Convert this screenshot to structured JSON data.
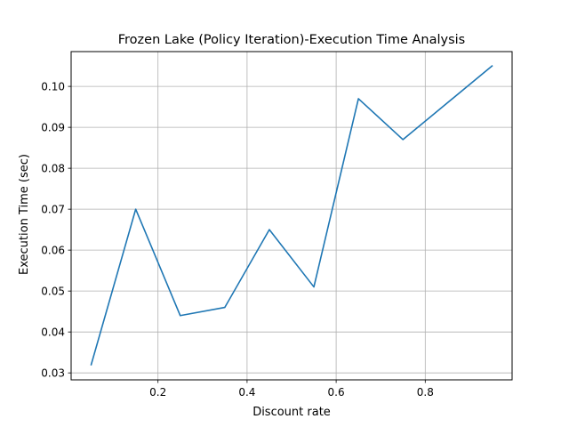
{
  "chart_data": {
    "type": "line",
    "title": "Frozen Lake (Policy Iteration)-Execution Time Analysis",
    "xlabel": "Discount rate",
    "ylabel": "Execution Time (sec)",
    "xlim": [
      0.005,
      0.995
    ],
    "ylim": [
      0.0283,
      0.1085
    ],
    "xticks": [
      0.2,
      0.4,
      0.6,
      0.8
    ],
    "xtick_labels": [
      "0.2",
      "0.4",
      "0.6",
      "0.8"
    ],
    "yticks": [
      0.03,
      0.04,
      0.05,
      0.06,
      0.07,
      0.08,
      0.09,
      0.1
    ],
    "ytick_labels": [
      "0.03",
      "0.04",
      "0.05",
      "0.06",
      "0.07",
      "0.08",
      "0.09",
      "0.10"
    ],
    "grid": true,
    "series": [
      {
        "color": "#1f77b4",
        "x": [
          0.05,
          0.15,
          0.25,
          0.35,
          0.45,
          0.55,
          0.65,
          0.75,
          0.95
        ],
        "y": [
          0.032,
          0.07,
          0.044,
          0.046,
          0.065,
          0.051,
          0.097,
          0.087,
          0.105
        ]
      }
    ]
  }
}
